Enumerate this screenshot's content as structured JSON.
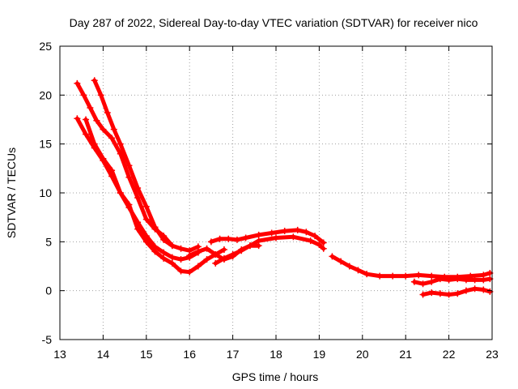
{
  "chart_data": {
    "type": "scatter",
    "title": "Day 287 of 2022, Sidereal Day-to-day VTEC variation (SDTVAR) for receiver nico",
    "xlabel": "GPS time / hours",
    "ylabel": "SDTVAR / TECUs",
    "xlim": [
      13,
      23
    ],
    "ylim": [
      -5,
      25
    ],
    "x_ticks": [
      "13",
      "14",
      "15",
      "16",
      "17",
      "18",
      "19",
      "20",
      "21",
      "22",
      "23"
    ],
    "y_ticks": [
      "-5",
      "0",
      "5",
      "10",
      "15",
      "20",
      "25"
    ],
    "grid": true,
    "marker_color": "#ff0000",
    "series": [
      {
        "name": "trace-a",
        "x": [
          13.4,
          13.55,
          13.7,
          13.85,
          14.0,
          14.2,
          14.4,
          14.6,
          14.8,
          15.0,
          15.2,
          15.4,
          15.6
        ],
        "y": [
          21.2,
          20.0,
          18.7,
          17.4,
          16.5,
          15.6,
          14.0,
          11.6,
          9.5,
          7.3,
          6.3,
          5.6,
          4.6
        ]
      },
      {
        "name": "trace-b",
        "x": [
          13.8,
          13.95,
          14.1,
          14.25,
          14.4,
          14.6,
          14.8,
          15.0,
          15.2,
          15.4,
          15.6,
          15.8,
          16.0,
          16.2
        ],
        "y": [
          21.5,
          20.0,
          18.2,
          16.5,
          15.0,
          12.8,
          10.5,
          8.6,
          6.5,
          5.2,
          4.6,
          4.3,
          4.1,
          4.5
        ]
      },
      {
        "name": "trace-c",
        "x": [
          13.4,
          13.6,
          13.8,
          14.0,
          14.2,
          14.4,
          14.6,
          14.8,
          15.0,
          15.2,
          15.4,
          15.6,
          15.8,
          16.0,
          16.2,
          16.4,
          16.6,
          16.8
        ],
        "y": [
          17.6,
          16.0,
          14.6,
          13.3,
          11.7,
          10.0,
          8.8,
          6.3,
          5.0,
          4.0,
          3.3,
          2.8,
          2.0,
          1.9,
          2.5,
          3.2,
          3.7,
          4.2
        ]
      },
      {
        "name": "trace-d",
        "x": [
          13.6,
          13.8,
          14.0,
          14.2,
          14.4,
          14.6,
          14.8,
          15.0,
          15.2,
          15.4,
          15.6,
          15.8,
          16.0,
          16.2
        ],
        "y": [
          17.5,
          15.0,
          13.5,
          12.3,
          10.0,
          8.5,
          7.0,
          5.6,
          4.5,
          3.9,
          3.4,
          3.2,
          3.4,
          3.9
        ]
      },
      {
        "name": "trace-e",
        "x": [
          16.5,
          16.7,
          16.9,
          17.1,
          17.3,
          17.6,
          17.9,
          18.2,
          18.5,
          18.7,
          18.9,
          19.1
        ],
        "y": [
          5.0,
          5.3,
          5.3,
          5.2,
          5.4,
          5.7,
          5.9,
          6.1,
          6.2,
          6.0,
          5.6,
          4.9
        ]
      },
      {
        "name": "trace-f",
        "x": [
          16.6,
          16.8,
          17.0,
          17.2,
          17.4,
          17.6,
          18.0,
          18.4,
          18.8,
          19.0,
          19.1
        ],
        "y": [
          2.8,
          3.3,
          3.7,
          4.1,
          4.6,
          5.1,
          5.4,
          5.5,
          5.1,
          4.7,
          4.3
        ]
      },
      {
        "name": "trace-g",
        "x": [
          16.0,
          16.2,
          16.4,
          16.6,
          16.8,
          17.0,
          17.2,
          17.4,
          17.6
        ],
        "y": [
          3.6,
          4.0,
          4.3,
          3.7,
          3.2,
          3.5,
          4.2,
          4.6,
          4.6
        ]
      },
      {
        "name": "trace-h",
        "x": [
          19.3,
          19.5,
          19.7,
          19.9,
          20.1,
          20.4,
          20.7,
          21.0,
          21.3,
          21.6,
          21.9,
          22.2,
          22.5,
          22.8,
          22.95
        ],
        "y": [
          3.5,
          3.0,
          2.5,
          2.1,
          1.7,
          1.5,
          1.5,
          1.5,
          1.6,
          1.5,
          1.4,
          1.4,
          1.5,
          1.6,
          1.8
        ]
      },
      {
        "name": "trace-i",
        "x": [
          21.2,
          21.4,
          21.6,
          21.8,
          22.0,
          22.2,
          22.4,
          22.6,
          22.8,
          22.95
        ],
        "y": [
          0.9,
          0.7,
          0.9,
          1.2,
          1.1,
          1.2,
          1.1,
          1.1,
          1.1,
          1.2
        ]
      },
      {
        "name": "trace-j",
        "x": [
          21.4,
          21.6,
          21.8,
          22.0,
          22.2,
          22.4,
          22.6,
          22.8,
          22.95
        ],
        "y": [
          -0.4,
          -0.2,
          -0.3,
          -0.4,
          -0.3,
          0.0,
          0.2,
          0.1,
          -0.1
        ]
      }
    ]
  }
}
